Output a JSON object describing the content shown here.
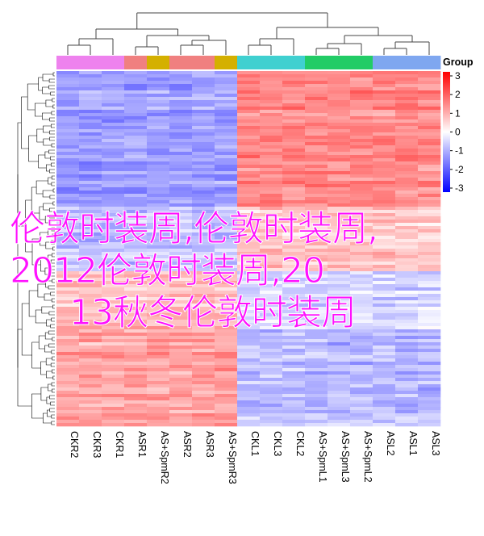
{
  "chart_data": {
    "type": "heatmap",
    "columns": [
      "CKR2",
      "CKR3",
      "CKR1",
      "ASR1",
      "AS+SpmR2",
      "ASR2",
      "ASR3",
      "AS+SpmR3",
      "CKL1",
      "CKL3",
      "CKL2",
      "AS+SpmL1",
      "AS+SpmL3",
      "AS+SpmL2",
      "ASL2",
      "ASL1",
      "ASL3"
    ],
    "group_legend_title": "Group",
    "group_colors": [
      "#ee82ee",
      "#ee82ee",
      "#ee82ee",
      "#f08080",
      "#d4b000",
      "#f08080",
      "#f08080",
      "#d4b000",
      "#40d0d0",
      "#40d0d0",
      "#40d0d0",
      "#22cc66",
      "#22cc66",
      "#22cc66",
      "#7fa7f0",
      "#7fa7f0",
      "#7fa7f0"
    ],
    "colorbar": {
      "ticks": [
        3,
        2,
        1,
        0,
        -1,
        -2,
        -3
      ],
      "low_color": "#0000ff",
      "mid_color": "#ffffff",
      "high_color": "#ff0000"
    },
    "column_mean_zscore": [
      -0.8,
      -0.9,
      -0.7,
      -0.8,
      -0.5,
      -0.7,
      -0.6,
      -0.6,
      1.1,
      1.0,
      0.9,
      0.8,
      0.7,
      0.9,
      0.7,
      0.8,
      0.6
    ],
    "row_bands": [
      {
        "from": 0.0,
        "to": 0.38,
        "left": -1.0,
        "right": 1.2
      },
      {
        "from": 0.38,
        "to": 0.56,
        "left": -0.6,
        "right": 0.5
      },
      {
        "from": 0.56,
        "to": 0.72,
        "left": 0.8,
        "right": -0.6
      },
      {
        "from": 0.72,
        "to": 1.0,
        "left": 1.1,
        "right": -0.9
      }
    ]
  },
  "overlay_text": {
    "line1": "伦敦时装周,伦敦时装周,",
    "line2": "2012伦敦时装周,20",
    "line3": "13秋冬伦敦时装周"
  }
}
